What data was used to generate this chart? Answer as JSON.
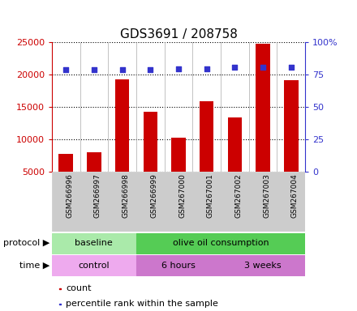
{
  "title": "GDS3691 / 208758",
  "samples": [
    "GSM266996",
    "GSM266997",
    "GSM266998",
    "GSM266999",
    "GSM267000",
    "GSM267001",
    "GSM267002",
    "GSM267003",
    "GSM267004"
  ],
  "counts": [
    7700,
    7900,
    19300,
    14200,
    10200,
    15900,
    13300,
    24800,
    19100
  ],
  "percentile_ranks": [
    78.5,
    78.5,
    78.5,
    78.5,
    79.5,
    79.5,
    80.5,
    80.5,
    80.5
  ],
  "bar_color": "#cc0000",
  "dot_color": "#3333cc",
  "ylim_left": [
    5000,
    25000
  ],
  "yticks_left": [
    5000,
    10000,
    15000,
    20000,
    25000
  ],
  "ylim_right": [
    0,
    100
  ],
  "yticks_right": [
    0,
    25,
    50,
    75,
    100
  ],
  "yticklabels_right": [
    "0",
    "25",
    "50",
    "75",
    "100%"
  ],
  "protocol_groups": [
    {
      "label": "baseline",
      "start": 0,
      "end": 3,
      "color": "#aaeaaa"
    },
    {
      "label": "olive oil consumption",
      "start": 3,
      "end": 9,
      "color": "#55cc55"
    }
  ],
  "time_groups": [
    {
      "label": "control",
      "start": 0,
      "end": 3,
      "color": "#eeaaee"
    },
    {
      "label": "6 hours",
      "start": 3,
      "end": 6,
      "color": "#cc77cc"
    },
    {
      "label": "3 weeks",
      "start": 6,
      "end": 9,
      "color": "#cc77cc"
    }
  ],
  "sample_box_color": "#cccccc",
  "legend_count_label": "count",
  "legend_pct_label": "percentile rank within the sample",
  "protocol_label": "protocol",
  "time_label": "time"
}
